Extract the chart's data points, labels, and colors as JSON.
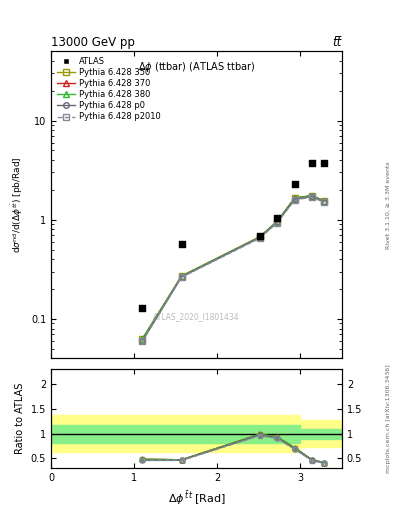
{
  "title_top": "13000 GeV pp",
  "title_top_right": "tt̅",
  "plot_title": "Δϕ (ttbar) (ATLAS ttbar)",
  "watermark": "ATLAS_2020_I1801434",
  "right_label_top": "Rivet 3.1.10, ≥ 3.3M events",
  "right_label_bottom": "mcplots.cern.ch [arXiv:1306.3436]",
  "ylabel_top": "dσ^{nd}/d(Δϕ^{t̅bar}) [pb/Rad]",
  "ylabel_bottom": "Ratio to ATLAS",
  "xlim": [
    0,
    3.5
  ],
  "ylim_top_lo": 0.04,
  "ylim_top_hi": 50,
  "ylim_bottom_lo": 0.3,
  "ylim_bottom_hi": 2.3,
  "atlas_x": [
    1.1,
    1.57,
    2.51,
    2.72,
    2.93,
    3.14,
    3.28
  ],
  "atlas_y": [
    0.13,
    0.57,
    0.68,
    1.03,
    2.3,
    3.7,
    3.7
  ],
  "mc_x": [
    1.1,
    1.57,
    2.51,
    2.72,
    2.93,
    3.14,
    3.28
  ],
  "mc_350_y": [
    0.063,
    0.27,
    0.67,
    0.96,
    1.65,
    1.75,
    1.55
  ],
  "mc_370_y": [
    0.063,
    0.27,
    0.67,
    0.96,
    1.65,
    1.75,
    1.55
  ],
  "mc_380_y": [
    0.063,
    0.27,
    0.67,
    0.96,
    1.65,
    1.75,
    1.55
  ],
  "mc_p0_y": [
    0.06,
    0.265,
    0.66,
    0.94,
    1.6,
    1.72,
    1.52
  ],
  "mc_p2010_y": [
    0.06,
    0.263,
    0.65,
    0.93,
    1.57,
    1.7,
    1.5
  ],
  "ratio_350": [
    0.485,
    0.474,
    0.985,
    0.932,
    0.717,
    0.473,
    0.419
  ],
  "ratio_370": [
    0.485,
    0.474,
    0.985,
    0.932,
    0.717,
    0.473,
    0.419
  ],
  "ratio_380": [
    0.485,
    0.474,
    0.985,
    0.932,
    0.717,
    0.473,
    0.419
  ],
  "ratio_p0": [
    0.462,
    0.465,
    0.97,
    0.912,
    0.696,
    0.465,
    0.411
  ],
  "ratio_p2010": [
    0.462,
    0.461,
    0.956,
    0.903,
    0.683,
    0.459,
    0.405
  ],
  "band_x": [
    0.0,
    0.5,
    1.0,
    1.5,
    2.0,
    2.5,
    3.0,
    3.5
  ],
  "band_green_lo": [
    0.82,
    0.82,
    0.82,
    0.82,
    0.82,
    0.82,
    0.9,
    0.9
  ],
  "band_green_hi": [
    1.18,
    1.18,
    1.18,
    1.18,
    1.18,
    1.18,
    1.1,
    1.1
  ],
  "band_yellow_lo": [
    0.63,
    0.63,
    0.63,
    0.63,
    0.63,
    0.63,
    0.73,
    0.73
  ],
  "band_yellow_hi": [
    1.37,
    1.37,
    1.37,
    1.37,
    1.37,
    1.37,
    1.27,
    1.27
  ],
  "color_350": "#999900",
  "color_370": "#cc2222",
  "color_380": "#33bb33",
  "color_p0": "#666677",
  "color_p2010": "#888899",
  "color_atlas": "#000000",
  "color_watermark": "#bbbbbb"
}
